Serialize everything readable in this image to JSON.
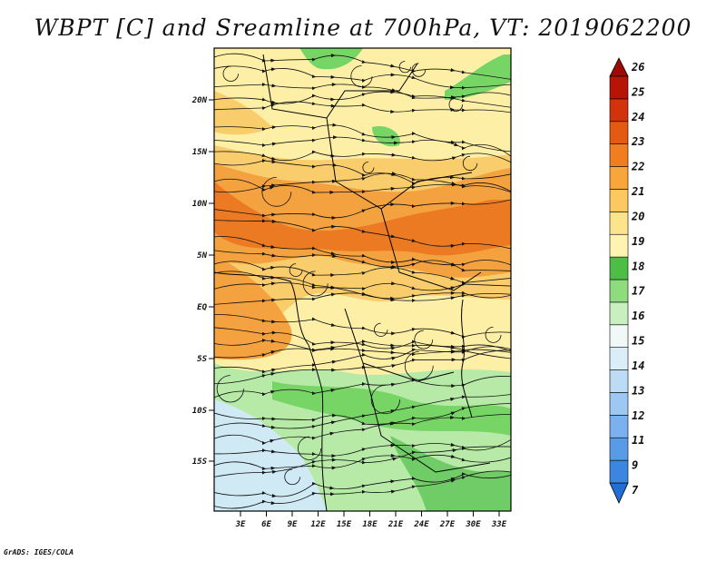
{
  "title": "WBPT [C] and Sreamline at 700hPa, VT: 2019062200",
  "credit": "GrADS: IGES/COLA",
  "map": {
    "lat_ticks": [
      "20N",
      "15N",
      "10N",
      "5N",
      "EQ",
      "5S",
      "10S",
      "15S"
    ],
    "lon_ticks": [
      "3E",
      "6E",
      "9E",
      "12E",
      "15E",
      "18E",
      "21E",
      "24E",
      "27E",
      "30E",
      "33E"
    ]
  },
  "colorbar": {
    "labels": [
      "7",
      "9",
      "11",
      "12",
      "13",
      "14",
      "15",
      "16",
      "17",
      "18",
      "19",
      "20",
      "21",
      "22",
      "23",
      "24",
      "25",
      "26"
    ],
    "colors": [
      "#1f6fd6",
      "#3c85e0",
      "#5a9be8",
      "#7bb1ee",
      "#9cc8f3",
      "#bcdcf6",
      "#daeefa",
      "#f0f9f8",
      "#c9efc0",
      "#8fdc7e",
      "#4ebd45",
      "#fff3b0",
      "#fde38c",
      "#fcc85f",
      "#f8a53a",
      "#f07e20",
      "#e45a12",
      "#d2330c",
      "#b51407",
      "#9b0a04"
    ]
  },
  "field": {
    "palette": {
      "lightblue": "#cfe9f5",
      "lightgreen": "#b7eaa7",
      "green": "#77d565",
      "darkgreen": "#3fb83a",
      "yellow": "#fdf0a6",
      "lightorange": "#f9cd6c",
      "orange": "#f4a240",
      "deeporange": "#ec7a22"
    }
  }
}
